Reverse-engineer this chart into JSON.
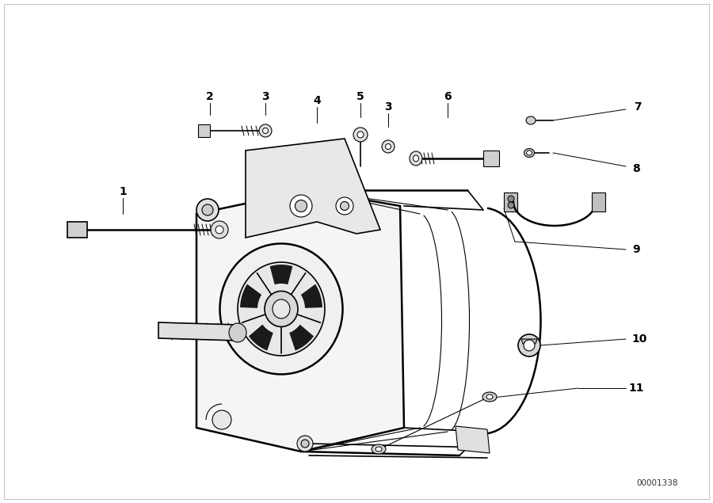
{
  "bg_color": "#ffffff",
  "lc": "#000000",
  "fig_width": 9.0,
  "fig_height": 6.35,
  "dpi": 100,
  "watermark": "00001338",
  "border_color": "#cccccc"
}
